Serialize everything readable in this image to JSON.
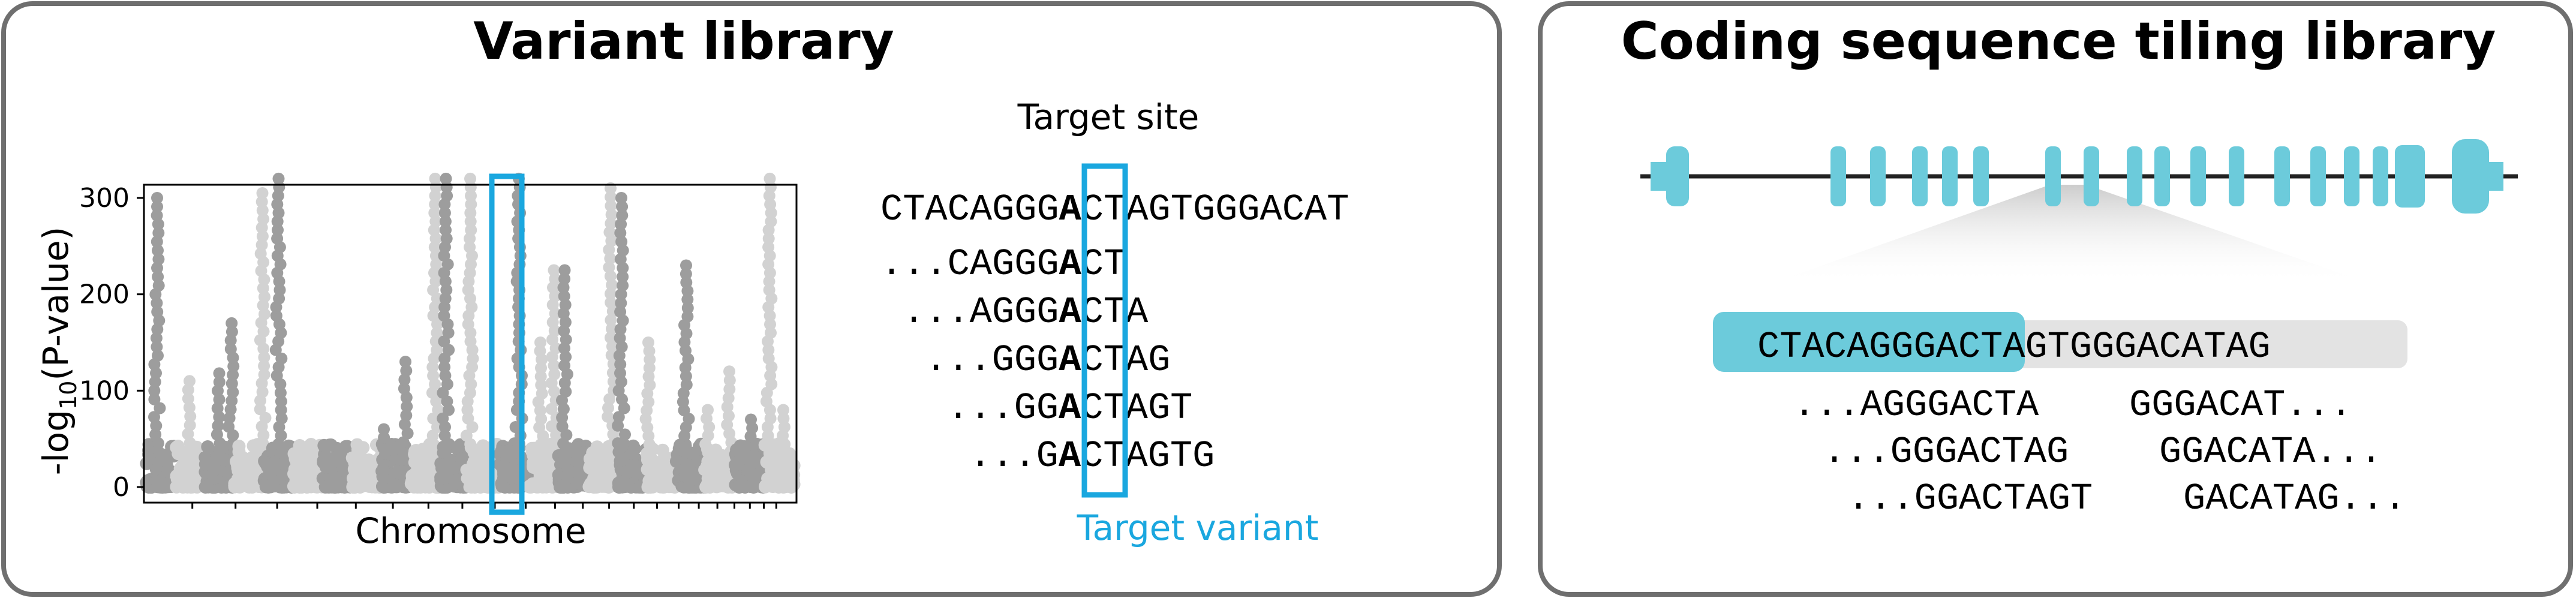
{
  "colors": {
    "panel_border": "#6f6f6f",
    "highlight_box": "#1aa7df",
    "gene": "#6ccbdb",
    "points_dark": "#9d9d9d",
    "points_light": "#d2d2d2",
    "tile_bg": "#e3e3e3"
  },
  "left_panel": {
    "title": "Variant library",
    "chart_data": {
      "type": "scatter",
      "title": "",
      "xlabel": "Chromosome",
      "ylabel_prefix": "-log",
      "ylabel_sub": "10",
      "ylabel_suffix": "(P-value)",
      "ylim": [
        0,
        335
      ],
      "yticks": [
        0,
        100,
        200,
        300
      ],
      "x_tick_count": 22,
      "grid": false,
      "highlight": "target variant column",
      "peaks": [
        {
          "x": 0.02,
          "y": 300
        },
        {
          "x": 0.08,
          "y": 110
        },
        {
          "x": 0.135,
          "y": 118
        },
        {
          "x": 0.158,
          "y": 170
        },
        {
          "x": 0.215,
          "y": 305
        },
        {
          "x": 0.245,
          "y": 320
        },
        {
          "x": 0.345,
          "y": 30
        },
        {
          "x": 0.39,
          "y": 25
        },
        {
          "x": 0.44,
          "y": 60
        },
        {
          "x": 0.48,
          "y": 130
        },
        {
          "x": 0.535,
          "y": 320
        },
        {
          "x": 0.555,
          "y": 320
        },
        {
          "x": 0.6,
          "y": 320
        },
        {
          "x": 0.69,
          "y": 320
        },
        {
          "x": 0.73,
          "y": 150
        },
        {
          "x": 0.755,
          "y": 225
        },
        {
          "x": 0.775,
          "y": 225
        },
        {
          "x": 0.86,
          "y": 310
        },
        {
          "x": 0.88,
          "y": 300
        },
        {
          "x": 0.93,
          "y": 150
        },
        {
          "x": 1.0,
          "y": 230
        },
        {
          "x": 1.04,
          "y": 80
        },
        {
          "x": 1.08,
          "y": 120
        },
        {
          "x": 1.12,
          "y": 70
        },
        {
          "x": 1.155,
          "y": 320
        },
        {
          "x": 1.18,
          "y": 80
        }
      ]
    },
    "target_site_label": "Target site",
    "target_variant_label": "Target variant",
    "reference_sequence": {
      "left": "CTACAGGG",
      "variant": "A",
      "right": "CTAGTGGGACAT"
    },
    "tiles": [
      {
        "prefix": "...",
        "left": "CAGGG",
        "variant": "A",
        "right": "CT"
      },
      {
        "prefix": "...",
        "left": "AGGG",
        "variant": "A",
        "right": "CTA"
      },
      {
        "prefix": "...",
        "left": "GGG",
        "variant": "A",
        "right": "CTAG"
      },
      {
        "prefix": "...",
        "left": "GG",
        "variant": "A",
        "right": "CTAGT"
      },
      {
        "prefix": "...",
        "left": "G",
        "variant": "A",
        "right": "CTAGTG"
      }
    ]
  },
  "right_panel": {
    "title": "Coding sequence tiling library",
    "exon_count": 18,
    "sequence_highlighted": "CTACAGGGAC",
    "sequence_rest": "TAGTGGGACATAG",
    "tiles": [
      {
        "left": "...AGGGACTA",
        "right": "GGGACAT..."
      },
      {
        "left": "...GGGACTAG",
        "right": "GGACATA..."
      },
      {
        "left": "...GGACTAGT",
        "right": "GACATAG..."
      }
    ]
  }
}
